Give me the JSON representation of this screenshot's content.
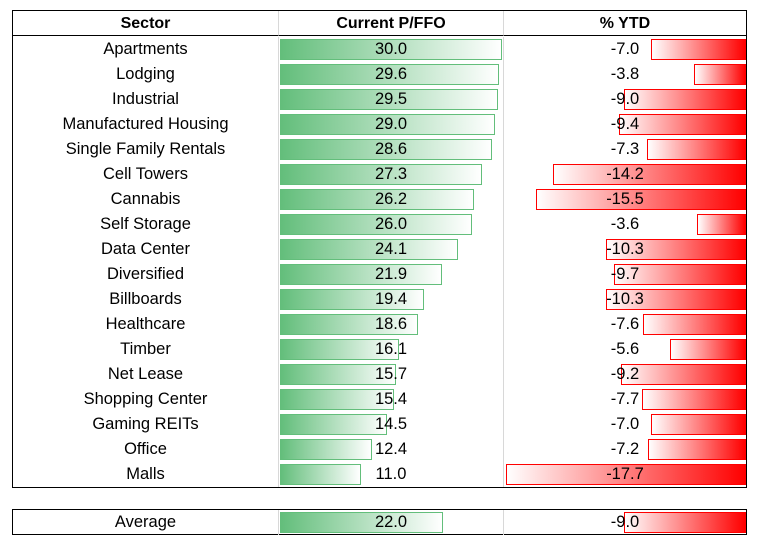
{
  "headers": {
    "sector": "Sector",
    "pffo": "Current P/FFO",
    "ytd": "% YTD"
  },
  "chart_data": {
    "type": "table",
    "columns": [
      "Sector",
      "Current P/FFO",
      "% YTD"
    ],
    "rows": [
      {
        "sector": "Apartments",
        "pffo": "30.0",
        "ytd": "-7.0"
      },
      {
        "sector": "Lodging",
        "pffo": "29.6",
        "ytd": "-3.8"
      },
      {
        "sector": "Industrial",
        "pffo": "29.5",
        "ytd": "-9.0"
      },
      {
        "sector": "Manufactured Housing",
        "pffo": "29.0",
        "ytd": "-9.4"
      },
      {
        "sector": "Single Family Rentals",
        "pffo": "28.6",
        "ytd": "-7.3"
      },
      {
        "sector": "Cell Towers",
        "pffo": "27.3",
        "ytd": "-14.2"
      },
      {
        "sector": "Cannabis",
        "pffo": "26.2",
        "ytd": "-15.5"
      },
      {
        "sector": "Self Storage",
        "pffo": "26.0",
        "ytd": "-3.6"
      },
      {
        "sector": "Data Center",
        "pffo": "24.1",
        "ytd": "-10.3"
      },
      {
        "sector": "Diversified",
        "pffo": "21.9",
        "ytd": "-9.7"
      },
      {
        "sector": "Billboards",
        "pffo": "19.4",
        "ytd": "-10.3"
      },
      {
        "sector": "Healthcare",
        "pffo": "18.6",
        "ytd": "-7.6"
      },
      {
        "sector": "Timber",
        "pffo": "16.1",
        "ytd": "-5.6"
      },
      {
        "sector": "Net Lease",
        "pffo": "15.7",
        "ytd": "-9.2"
      },
      {
        "sector": "Shopping Center",
        "pffo": "15.4",
        "ytd": "-7.7"
      },
      {
        "sector": "Gaming REITs",
        "pffo": "14.5",
        "ytd": "-7.0"
      },
      {
        "sector": "Office",
        "pffo": "12.4",
        "ytd": "-7.2"
      },
      {
        "sector": "Malls",
        "pffo": "11.0",
        "ytd": "-17.7"
      }
    ],
    "average": {
      "sector": "Average",
      "pffo": "22.0",
      "ytd": "-9.0"
    },
    "pffo_bar_scale_max": 30.0,
    "ytd_bar_scale_min": -17.7
  },
  "colors": {
    "positive_bar": "#63be7b",
    "negative_bar": "#ff0000"
  }
}
